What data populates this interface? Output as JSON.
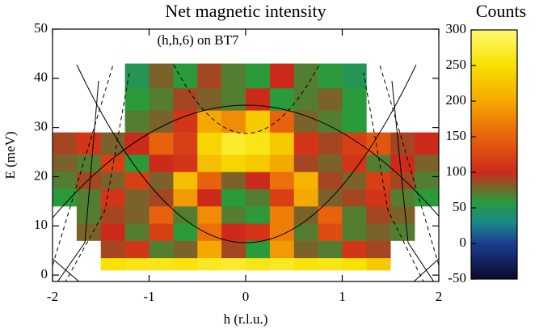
{
  "chart_data": {
    "type": "heatmap",
    "title": "Net magnetic intensity",
    "annotation": "(h,h,6) on BT7",
    "xlabel": "h (r.l.u.)",
    "ylabel": "E (meV)",
    "x_edges": [
      -2,
      -1.75,
      -1.5,
      -1.25,
      -1,
      -0.75,
      -0.5,
      -0.25,
      0,
      0.25,
      0.5,
      0.75,
      1,
      1.25,
      1.5,
      1.75,
      2
    ],
    "y_edges": [
      1,
      3.5,
      7,
      10.5,
      14,
      17.5,
      21,
      24.5,
      29,
      33.5,
      38,
      43
    ],
    "values": [
      [
        null,
        null,
        250,
        260,
        260,
        255,
        265,
        270,
        260,
        265,
        255,
        260,
        250,
        230,
        null,
        null
      ],
      [
        null,
        null,
        90,
        110,
        70,
        80,
        200,
        90,
        60,
        190,
        80,
        70,
        110,
        90,
        null,
        null
      ],
      [
        null,
        80,
        100,
        70,
        120,
        60,
        160,
        100,
        110,
        170,
        70,
        130,
        70,
        80,
        70,
        null
      ],
      [
        null,
        70,
        90,
        80,
        150,
        70,
        180,
        70,
        60,
        170,
        80,
        150,
        70,
        90,
        80,
        null
      ],
      [
        60,
        70,
        110,
        80,
        90,
        190,
        100,
        60,
        70,
        120,
        200,
        80,
        90,
        110,
        70,
        60
      ],
      [
        70,
        90,
        80,
        120,
        80,
        220,
        150,
        80,
        100,
        160,
        210,
        90,
        80,
        120,
        90,
        70
      ],
      [
        80,
        70,
        120,
        60,
        100,
        110,
        220,
        240,
        230,
        200,
        90,
        80,
        110,
        70,
        100,
        80
      ],
      [
        90,
        110,
        80,
        100,
        150,
        120,
        240,
        270,
        260,
        230,
        110,
        90,
        120,
        140,
        90,
        100
      ],
      [
        null,
        null,
        null,
        70,
        80,
        110,
        200,
        180,
        230,
        150,
        80,
        70,
        60,
        null,
        null,
        null
      ],
      [
        null,
        null,
        null,
        60,
        70,
        90,
        80,
        70,
        100,
        60,
        70,
        80,
        60,
        null,
        null,
        null
      ],
      [
        null,
        null,
        null,
        50,
        80,
        60,
        90,
        70,
        60,
        100,
        70,
        60,
        50,
        null,
        null,
        null
      ]
    ],
    "xlim": [
      -2,
      2
    ],
    "xticks": [
      -2,
      -1,
      0,
      1,
      2
    ],
    "ylim": [
      -1.3,
      50
    ],
    "yticks": [
      0,
      10,
      20,
      30,
      40,
      50
    ],
    "colorbar_label": "Counts",
    "clim": [
      -50,
      300
    ],
    "cticks": [
      -50,
      0,
      50,
      100,
      150,
      200,
      250,
      300
    ],
    "colormap": [
      {
        "value": -50,
        "color": "#0a0a2a"
      },
      {
        "value": 0,
        "color": "#1c3c90"
      },
      {
        "value": 30,
        "color": "#1a8a8a"
      },
      {
        "value": 60,
        "color": "#2a9a3a"
      },
      {
        "value": 100,
        "color": "#cc2a1a"
      },
      {
        "value": 150,
        "color": "#e8620e"
      },
      {
        "value": 200,
        "color": "#f5a800"
      },
      {
        "value": 250,
        "color": "#f8e000"
      },
      {
        "value": 300,
        "color": "#fffa70"
      }
    ]
  }
}
